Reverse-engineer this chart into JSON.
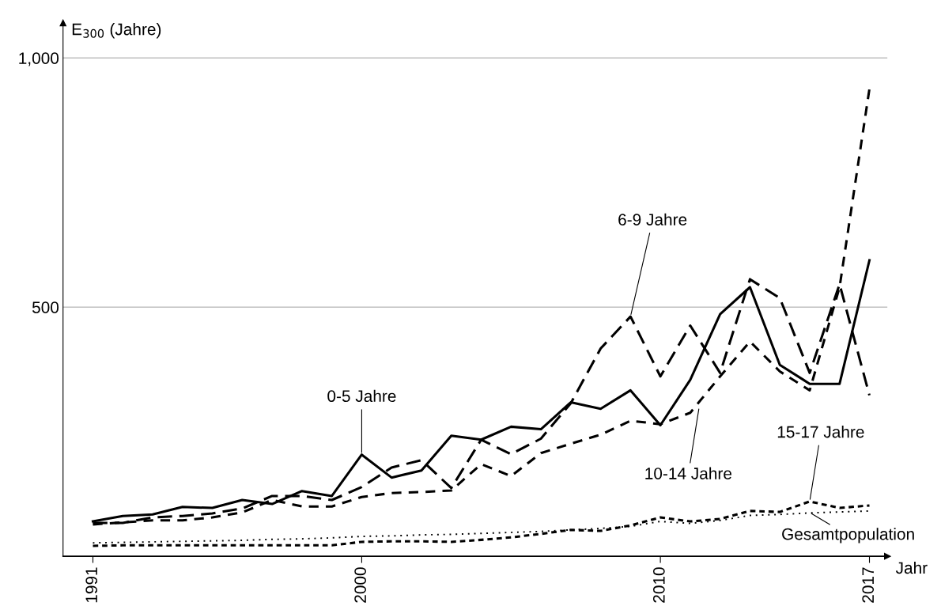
{
  "chart_data": {
    "type": "line",
    "ylabel": "E$_{300}$ (Jahre)",
    "xlabel": "Jahr",
    "x": [
      1991,
      1992,
      1993,
      1994,
      1995,
      1996,
      1997,
      1998,
      1999,
      2000,
      2001,
      2002,
      2003,
      2004,
      2005,
      2006,
      2007,
      2008,
      2009,
      2010,
      2011,
      2012,
      2013,
      2014,
      2015,
      2016,
      2017
    ],
    "series": [
      {
        "color": "#000000",
        "line_style": "solid",
        "values": [
          70,
          81,
          84,
          99,
          97,
          113,
          105,
          131,
          121,
          204,
          158,
          172,
          242,
          234,
          260,
          255,
          309,
          296,
          333,
          263,
          354,
          486,
          540,
          384,
          346,
          346,
          594
        ]
      },
      {
        "color": "#000000",
        "line_style": "dashed",
        "values": [
          67,
          67,
          78,
          81,
          86,
          96,
          121,
          121,
          113,
          139,
          178,
          193,
          137,
          234,
          205,
          236,
          307,
          417,
          481,
          361,
          463,
          368,
          556,
          518,
          368,
          546,
          323
        ]
      },
      {
        "color": "#000000",
        "line_style": "dashed",
        "values": [
          64,
          68,
          72,
          72,
          78,
          88,
          113,
          100,
          100,
          119,
          127,
          129,
          132,
          185,
          161,
          207,
          226,
          244,
          272,
          265,
          288,
          361,
          431,
          371,
          333,
          540,
          938
        ]
      },
      {
        "color": "#000000",
        "line_style": "dashed",
        "values": [
          21,
          22,
          22,
          22,
          22,
          22,
          22,
          22,
          22,
          29,
          30,
          30,
          29,
          33,
          38,
          45,
          53,
          51,
          62,
          78,
          70,
          75,
          91,
          89,
          110,
          97,
          102
        ]
      },
      {
        "color": "#000000",
        "line_style": "dotted",
        "values": [
          27,
          28,
          29,
          30,
          31,
          32,
          34,
          35,
          37,
          40,
          41,
          43,
          44,
          46,
          48,
          50,
          53,
          56,
          60,
          70,
          66,
          72,
          82,
          84,
          87,
          89,
          91
        ]
      }
    ],
    "annotations": [
      {
        "text": "0-5 Jahre",
        "x": 2000,
        "y": 204
      },
      {
        "text": "6-9 Jahre",
        "x": 2009,
        "y": 481
      },
      {
        "text": "10-14 Jahre",
        "x": 2011.3,
        "y": 300
      },
      {
        "text": "15-17 Jahre",
        "x": 2015,
        "y": 110
      },
      {
        "text": "Gesamtpopulation",
        "x": 2015,
        "y": 88
      }
    ],
    "xlim": [
      1990,
      2017.6
    ],
    "ylim": [
      0,
      1070
    ],
    "xticks": [
      1991,
      2000,
      2010,
      2017
    ],
    "yticks": [
      500,
      {
        "value": 1000,
        "label": "1,000"
      }
    ],
    "grid": "y",
    "legend": false,
    "marker": "none"
  }
}
